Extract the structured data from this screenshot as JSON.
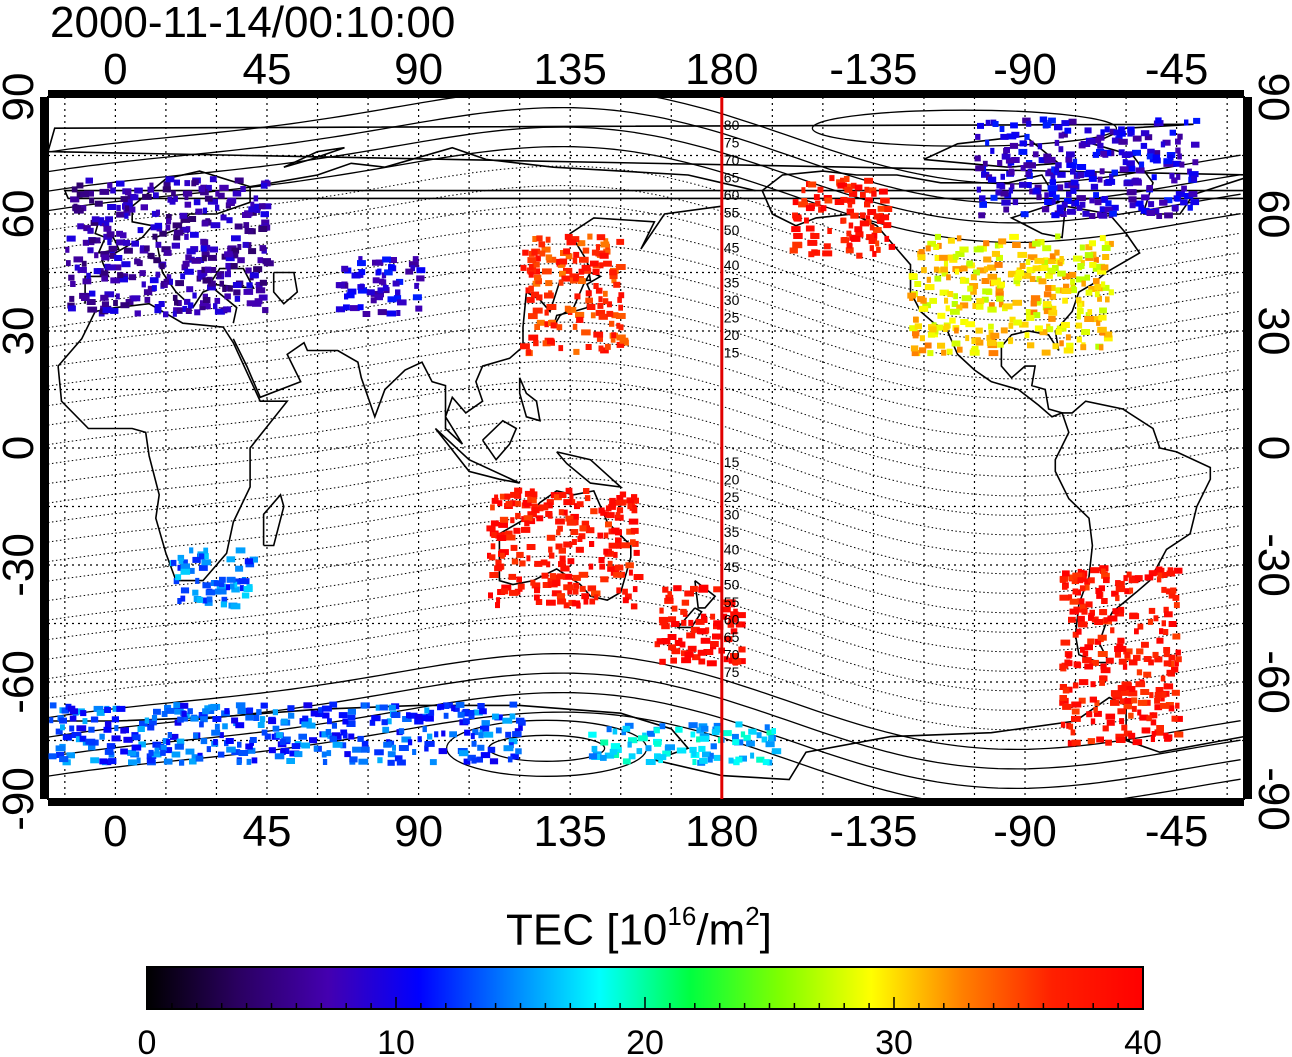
{
  "title": "2000-11-14/00:10:00",
  "map": {
    "lon_ticks_top": [
      "0",
      "45",
      "90",
      "135",
      "180",
      "-135",
      "-90",
      "-45"
    ],
    "lon_ticks_bottom": [
      "0",
      "45",
      "90",
      "135",
      "180",
      "-135",
      "-90",
      "-45"
    ],
    "lat_ticks": [
      "90",
      "60",
      "30",
      "0",
      "-30",
      "-60",
      "-90"
    ],
    "terminator_lon": 180,
    "terminator_color": "#e00000",
    "contour_labels_north": [
      "80",
      "75",
      "70",
      "65",
      "60",
      "55",
      "50",
      "45",
      "40",
      "35",
      "30",
      "25",
      "20",
      "15"
    ],
    "contour_labels_south": [
      "15",
      "20",
      "25",
      "30",
      "35",
      "40",
      "45",
      "50",
      "55",
      "60",
      "65",
      "70",
      "75"
    ],
    "grid": "dotted",
    "projection": "equirectangular"
  },
  "colorbar": {
    "label_main": "TEC  [10",
    "label_exp": "16",
    "label_unit": "/m",
    "label_exp2": "2",
    "label_close": "]",
    "ticks": [
      "0",
      "10",
      "20",
      "30",
      "40"
    ],
    "vmin": 0,
    "vmax": 40,
    "colors": [
      "#000000",
      "#2a0060",
      "#4400b0",
      "#0000ff",
      "#0080ff",
      "#00ffff",
      "#00ff40",
      "#80ff00",
      "#ffff00",
      "#ff8000",
      "#ff2000",
      "#ff0000"
    ]
  },
  "chart_data": {
    "type": "heatmap",
    "title": "2000-11-14/00:10:00",
    "xlabel": "",
    "ylabel": "",
    "xlim": [
      -20,
      335
    ],
    "ylim": [
      -90,
      90
    ],
    "colorbar_label": "TEC [10^16/m^2]",
    "colorbar_range": [
      0,
      40
    ],
    "regions": [
      {
        "lon": [
          -15,
          45
        ],
        "lat": [
          35,
          70
        ],
        "tec": 7
      },
      {
        "lon": [
          15,
          40
        ],
        "lat": [
          -40,
          -25
        ],
        "tec": 14
      },
      {
        "lon": [
          65,
          90
        ],
        "lat": [
          35,
          50
        ],
        "tec": 9
      },
      {
        "lon": [
          120,
          150
        ],
        "lat": [
          25,
          55
        ],
        "tec": 36
      },
      {
        "lon": [
          110,
          155
        ],
        "lat": [
          -40,
          -10
        ],
        "tec": 38
      },
      {
        "lon": [
          160,
          185
        ],
        "lat": [
          -55,
          -35
        ],
        "tec": 39
      },
      {
        "lon": [
          235,
          295
        ],
        "lat": [
          25,
          55
        ],
        "tec": 30
      },
      {
        "lon": [
          200,
          230
        ],
        "lat": [
          50,
          70
        ],
        "tec": 38
      },
      {
        "lon": [
          280,
          315
        ],
        "lat": [
          -75,
          -30
        ],
        "tec": 38
      },
      {
        "lon": [
          255,
          320
        ],
        "lat": [
          60,
          85
        ],
        "tec": 9
      },
      {
        "lon": [
          -20,
          120
        ],
        "lat": [
          -80,
          -65
        ],
        "tec": 13
      },
      {
        "lon": [
          140,
          195
        ],
        "lat": [
          -80,
          -70
        ],
        "tec": 17
      }
    ]
  }
}
